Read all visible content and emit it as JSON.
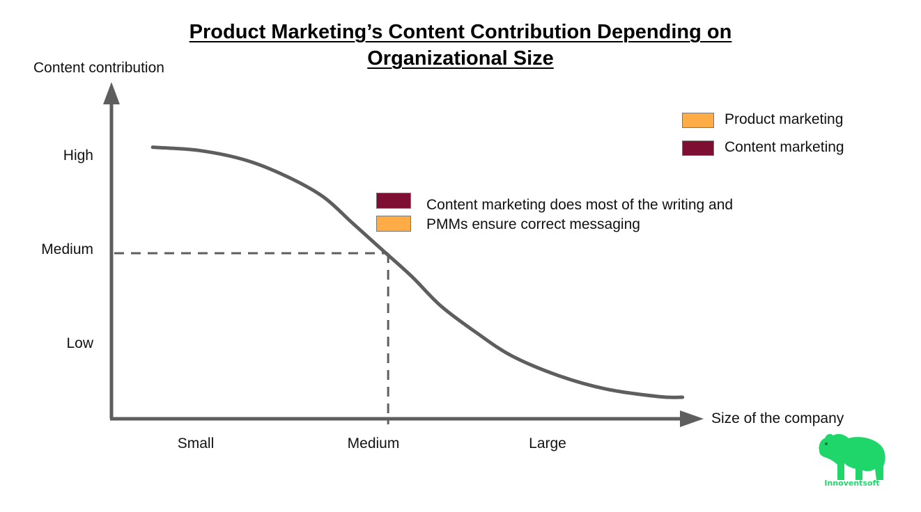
{
  "chart_data": {
    "type": "line",
    "title_lines": [
      "Product Marketing’s Content Contribution Depending on",
      "Organizational Size"
    ],
    "ylabel": "Content contribution",
    "xlabel": "Size of the company",
    "yticks": [
      "High",
      "Medium",
      "Low"
    ],
    "xticks": [
      "Small",
      "Medium",
      "Large"
    ],
    "ylim": [
      0,
      1
    ],
    "xlim": [
      0,
      1
    ],
    "series": [
      {
        "x": [
          0.07,
          0.15,
          0.23,
          0.3,
          0.36,
          0.41,
          0.46,
          0.51,
          0.56,
          0.62,
          0.68,
          0.76,
          0.84,
          0.93,
          0.97
        ],
        "y": [
          0.82,
          0.81,
          0.78,
          0.73,
          0.67,
          0.59,
          0.51,
          0.43,
          0.34,
          0.26,
          0.19,
          0.13,
          0.09,
          0.067,
          0.065
        ]
      }
    ],
    "marker": {
      "x": 0.47,
      "y": 0.5
    },
    "legend": {
      "placement": "top-right",
      "entries": [
        {
          "label": "Product marketing",
          "color": "#ffac46"
        },
        {
          "label": "Content marketing",
          "color": "#7f0e33"
        }
      ]
    },
    "annotation": {
      "lines": [
        "Content marketing does most of the writing and",
        "PMMs ensure correct messaging"
      ],
      "colors": [
        "#7f0e33",
        "#ffac46"
      ]
    },
    "grid": false,
    "colors": {
      "axis": "#5e5e5e",
      "curve": "#5e5e5e"
    }
  },
  "watermark": {
    "text": "Innoventsoft",
    "icon": "polar-bear-icon",
    "color": "#1fd66a"
  }
}
